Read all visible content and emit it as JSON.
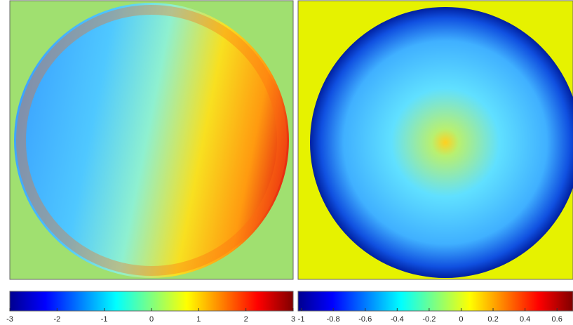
{
  "chart_data": [
    {
      "type": "heatmap",
      "colormap": "jet",
      "clim": [
        -3,
        3
      ],
      "cticks": [
        -3,
        -2,
        -1,
        0,
        1,
        2,
        3
      ]
    },
    {
      "type": "heatmap",
      "colormap": "jet",
      "clim": [
        -1.02,
        0.7
      ],
      "cticks": [
        -1,
        -0.8,
        -0.6,
        -0.4,
        -0.2,
        0,
        0.2,
        0.4,
        0.6
      ]
    }
  ]
}
